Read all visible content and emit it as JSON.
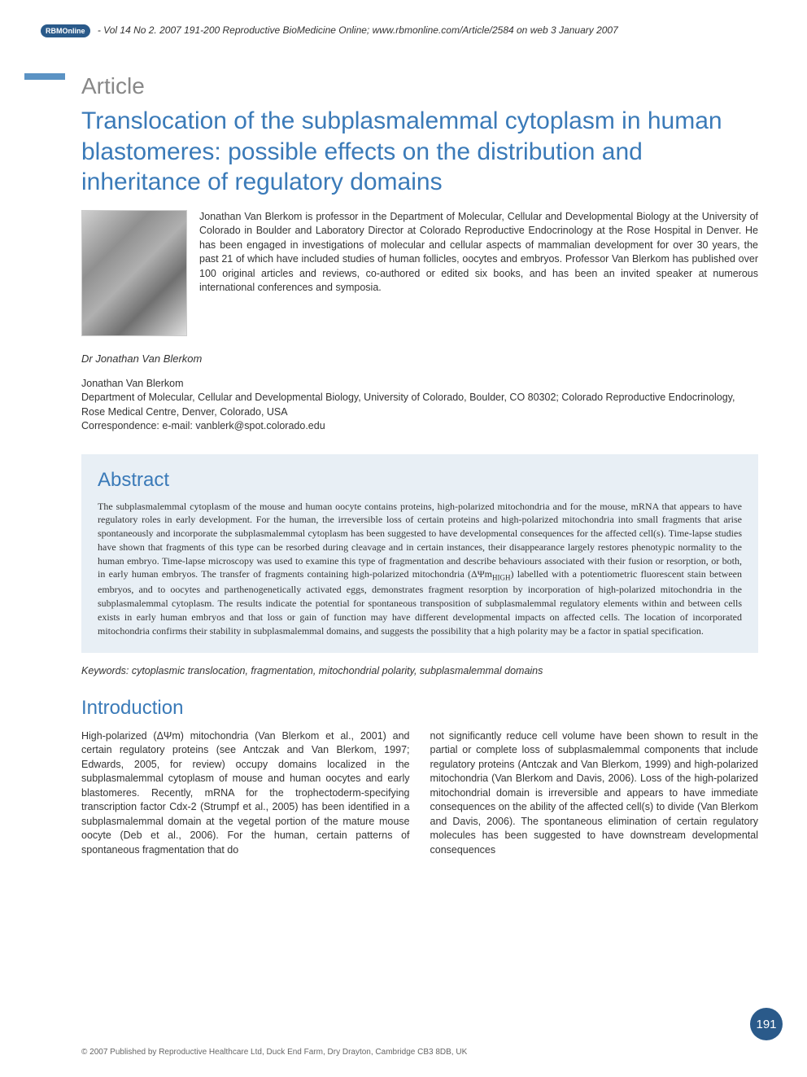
{
  "header": {
    "logo_text": "RBMOnline",
    "citation": "- Vol 14 No 2. 2007 191-200 Reproductive BioMedicine Online; www.rbmonline.com/Article/2584 on web 3 January 2007"
  },
  "article": {
    "label": "Article",
    "title": "Translocation of the subplasmalemmal cytoplasm in human blastomeres: possible effects on the distribution and inheritance of regulatory domains",
    "bio": "Jonathan Van Blerkom is professor in the Department of Molecular, Cellular and Developmental Biology at the University of Colorado in Boulder and Laboratory Director at Colorado Reproductive Endocrinology at the Rose Hospital in Denver. He has been engaged in investigations of molecular and cellular aspects of mammalian development for over 30 years, the past 21 of which have included studies of human follicles, oocytes and embryos. Professor Van Blerkom has published over 100 original articles and reviews, co-authored or edited six books, and has been an invited speaker at numerous international conferences and symposia.",
    "author_name_italic": "Dr Jonathan Van Blerkom",
    "author_name": "Jonathan Van Blerkom",
    "affiliation": "Department of Molecular, Cellular and Developmental Biology, University of Colorado, Boulder, CO 80302; Colorado Reproductive Endocrinology, Rose Medical Centre, Denver, Colorado, USA",
    "correspondence": "Correspondence: e-mail: vanblerk@spot.colorado.edu"
  },
  "abstract": {
    "heading": "Abstract",
    "text_pre": "The subplasmalemmal cytoplasm of the mouse and human oocyte contains proteins, high-polarized mitochondria and for the mouse, mRNA that appears to have regulatory roles in early development. For the human, the irreversible loss of certain proteins and high-polarized mitochondria into small fragments that arise spontaneously and incorporate the subplasmalemmal cytoplasm has been suggested to have developmental consequences for the affected cell(s). Time-lapse studies have shown that fragments of this type can be resorbed during cleavage and in certain instances, their disappearance largely restores phenotypic normality to the human embryo. Time-lapse microscopy was used to examine this type of fragmentation and describe behaviours associated with their fusion or resorption, or both, in early human embryos. The transfer of fragments containing high-polarized mitochondria (ΔΨm",
    "text_sub": "HIGH",
    "text_post": ") labelled with a potentiometric fluorescent stain between embryos, and to oocytes and parthenogenetically activated eggs, demonstrates fragment resorption by incorporation of high-polarized mitochondria in the subplasmalemmal cytoplasm. The results indicate the potential for spontaneous transposition of subplasmalemmal regulatory elements within and between cells exists in early human embryos and that loss or gain of function may have different developmental impacts on affected cells. The location of incorporated mitochondria confirms their stability in subplasmalemmal domains, and suggests the possibility that a high polarity may be a factor in spatial specification."
  },
  "keywords": "Keywords: cytoplasmic translocation, fragmentation, mitochondrial polarity, subplasmalemmal domains",
  "introduction": {
    "heading": "Introduction",
    "col1": "High-polarized (ΔΨm) mitochondria (Van Blerkom et al., 2001) and certain regulatory proteins (see Antczak and Van Blerkom, 1997; Edwards, 2005, for review) occupy domains localized in the subplasmalemmal cytoplasm of mouse and human oocytes and early blastomeres. Recently, mRNA for the trophectoderm-specifying transcription factor Cdx-2 (Strumpf et al., 2005) has been identified in a subplasmalemmal domain at the vegetal portion of the mature mouse oocyte (Deb et al., 2006). For the human, certain patterns of spontaneous fragmentation that do",
    "col2": "not significantly reduce cell volume have been shown to result in the partial or complete loss of subplasmalemmal components that include regulatory proteins (Antczak and Van Blerkom, 1999) and high-polarized mitochondria (Van Blerkom and Davis, 2006). Loss of the high-polarized mitochondrial domain is irreversible and appears to have immediate consequences on the ability of the affected cell(s) to divide (Van Blerkom and Davis, 2006). The spontaneous elimination of certain regulatory molecules has been suggested to have downstream developmental consequences"
  },
  "footer": {
    "copyright": "© 2007 Published by Reproductive Healthcare Ltd, Duck End Farm, Dry Drayton, Cambridge CB3 8DB, UK",
    "page_number": "191"
  },
  "colors": {
    "primary_blue": "#3a7ab8",
    "dark_blue": "#2a5a8a",
    "accent_blue": "#5b93c4",
    "abstract_bg": "#e8eff5",
    "text": "#333333",
    "grey": "#888888"
  }
}
